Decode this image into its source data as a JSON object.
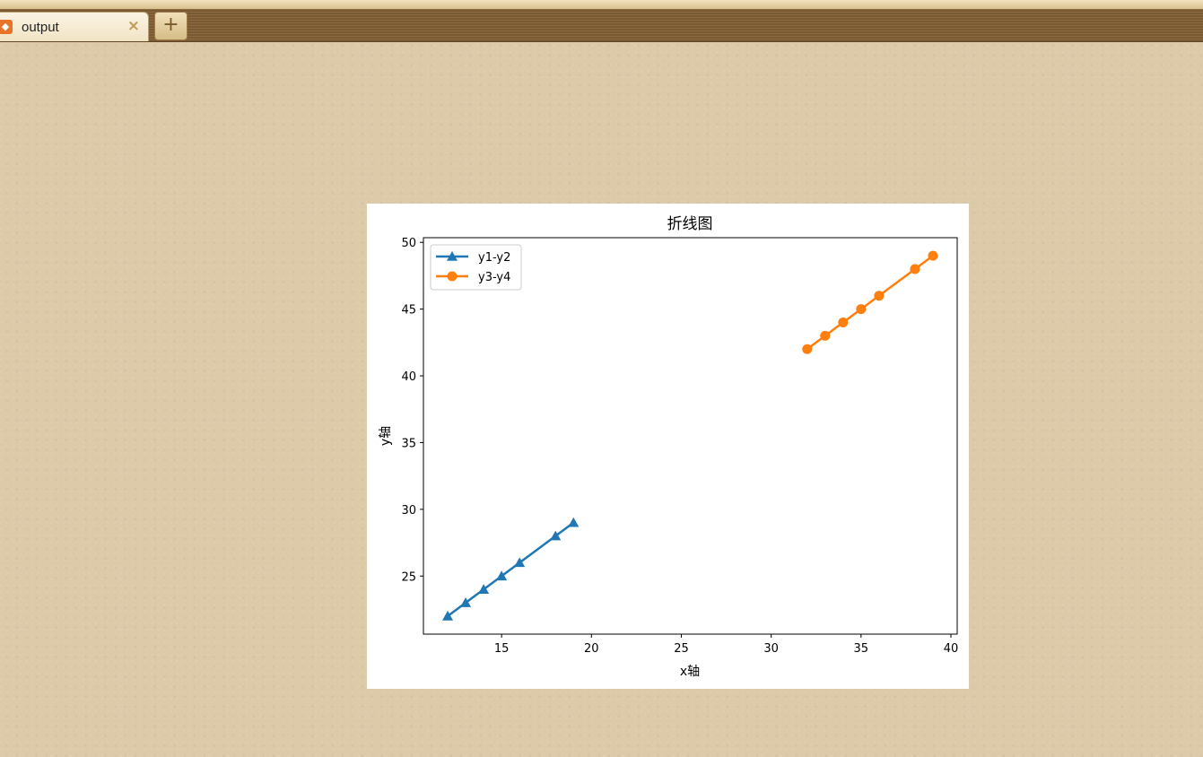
{
  "browser": {
    "tab_title": "output",
    "tab_close": "×",
    "new_tab": "+"
  },
  "chart_data": {
    "type": "line",
    "title": "折线图",
    "xlabel": "x轴",
    "ylabel": "y轴",
    "xlim": [
      10.65,
      40.35
    ],
    "ylim": [
      20.65,
      50.35
    ],
    "xticks": [
      15,
      20,
      25,
      30,
      35,
      40
    ],
    "yticks": [
      25,
      30,
      35,
      40,
      45,
      50
    ],
    "grid": false,
    "legend_position": "upper-left",
    "series": [
      {
        "name": "y1-y2",
        "color": "#1f77b4",
        "marker": "triangle",
        "x": [
          12,
          13,
          14,
          15,
          16,
          18,
          19
        ],
        "y": [
          22,
          23,
          24,
          25,
          26,
          28,
          29
        ]
      },
      {
        "name": "y3-y4",
        "color": "#ff7f0e",
        "marker": "circle",
        "x": [
          32,
          33,
          34,
          35,
          36,
          38,
          39
        ],
        "y": [
          42,
          43,
          44,
          45,
          46,
          48,
          49
        ]
      }
    ]
  }
}
